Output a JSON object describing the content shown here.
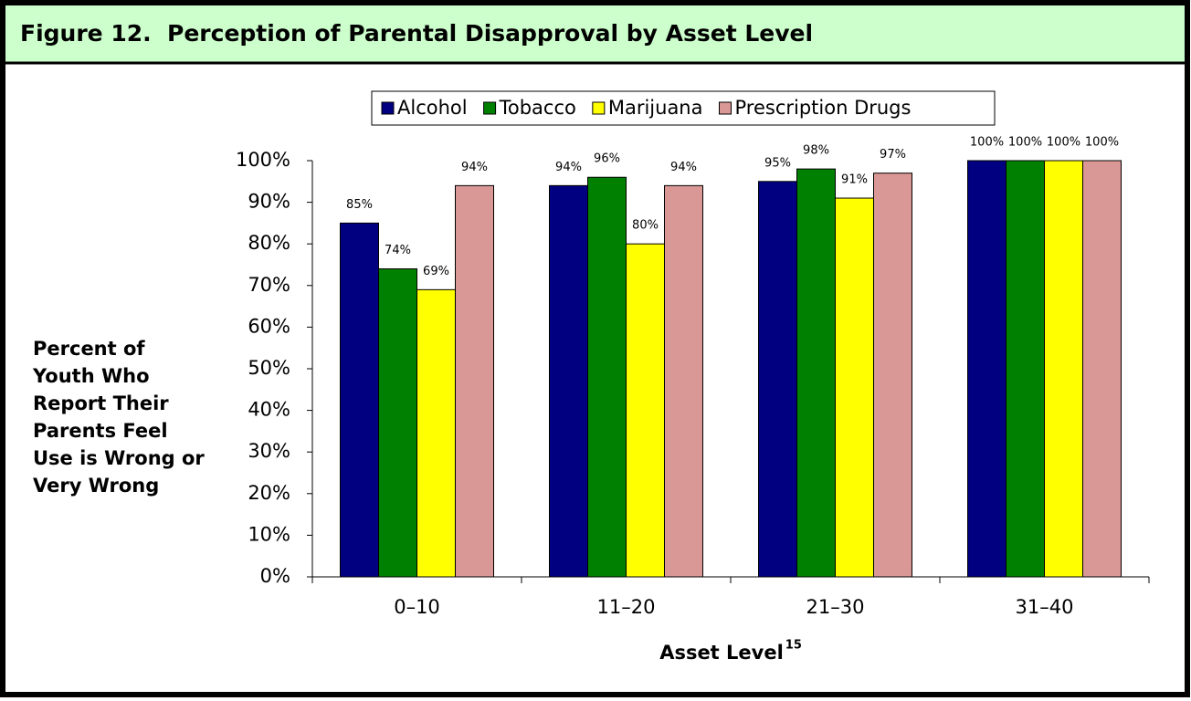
{
  "chart_data": {
    "type": "bar",
    "title": "Figure 12.  Perception of Parental Disapproval by Asset Level",
    "ylabel_lines": [
      "Percent of",
      "Youth Who",
      "Report Their",
      "Parents Feel",
      "Use is Wrong or",
      "Very Wrong"
    ],
    "xlabel": "Asset Level",
    "xlabel_footnote": "15",
    "categories": [
      "0–10",
      "11–20",
      "21–30",
      "31–40"
    ],
    "series": [
      {
        "name": "Alcohol",
        "color": "#000080",
        "values": [
          85,
          94,
          95,
          100
        ],
        "value_labels": [
          "85%",
          "94%",
          "95%",
          "100%"
        ]
      },
      {
        "name": "Tobacco",
        "color": "#008000",
        "values": [
          74,
          96,
          98,
          100
        ],
        "value_labels": [
          "74%",
          "96%",
          "98%",
          "100%"
        ]
      },
      {
        "name": "Marijuana",
        "color": "#ffff00",
        "values": [
          69,
          80,
          91,
          100
        ],
        "value_labels": [
          "69%",
          "80%",
          "91%",
          "100%"
        ]
      },
      {
        "name": "Prescription Drugs",
        "color": "#d99795",
        "values": [
          94,
          94,
          97,
          100
        ],
        "value_labels": [
          "94%",
          "94%",
          "97%",
          "100%"
        ]
      }
    ],
    "ylim": [
      0,
      100
    ],
    "yticks": [
      {
        "value": 0,
        "label": "0%"
      },
      {
        "value": 10,
        "label": "10%"
      },
      {
        "value": 20,
        "label": "20%"
      },
      {
        "value": 30,
        "label": "30%"
      },
      {
        "value": 40,
        "label": "40%"
      },
      {
        "value": 50,
        "label": "50%"
      },
      {
        "value": 60,
        "label": "60%"
      },
      {
        "value": 70,
        "label": "70%"
      },
      {
        "value": 80,
        "label": "80%"
      },
      {
        "value": 90,
        "label": "90%"
      },
      {
        "value": 100,
        "label": "100%"
      }
    ],
    "legend": "top"
  }
}
